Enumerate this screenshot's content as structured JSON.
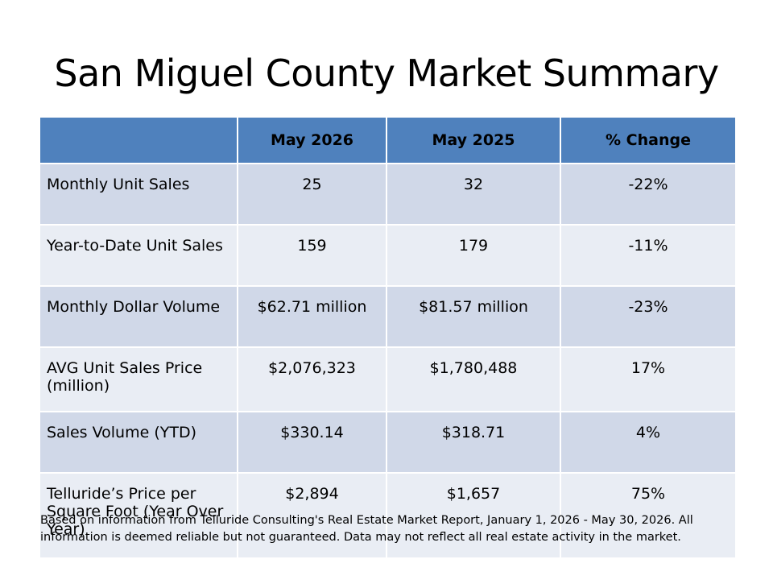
{
  "title": "San Miguel County Market Summary",
  "table": {
    "headers": [
      "",
      "May 2026",
      "May 2025",
      "% Change"
    ],
    "rows": [
      {
        "label": "Monthly Unit Sales",
        "may2026": "25",
        "may2025": "32",
        "change": "-22%"
      },
      {
        "label": "Year-to-Date Unit Sales",
        "may2026": "159",
        "may2025": "179",
        "change": "-11%"
      },
      {
        "label": "Monthly Dollar Volume",
        "may2026": "$62.71 million",
        "may2025": "$81.57 million",
        "change": "-23%"
      },
      {
        "label": "AVG Unit Sales Price (million)",
        "may2026": "$2,076,323",
        "may2025": "$1,780,488",
        "change": "17%"
      },
      {
        "label": "Sales Volume (YTD)",
        "may2026": "$330.14",
        "may2025": "$318.71",
        "change": "4%"
      },
      {
        "label": "Telluride’s Price per Square Foot (Year Over Year)",
        "may2026": "$2,894",
        "may2025": "$1,657",
        "change": "75%"
      }
    ]
  },
  "footnote": "Based on information from Telluride Consulting's Real Estate Market Report, January 1, 2026 - May 30, 2026. All information is deemed reliable but not guaranteed. Data may not reflect all real estate activity in the market.",
  "colors": {
    "header": "#4f81bd",
    "row_odd": "#d0d8e8",
    "row_even": "#e9edf4"
  }
}
